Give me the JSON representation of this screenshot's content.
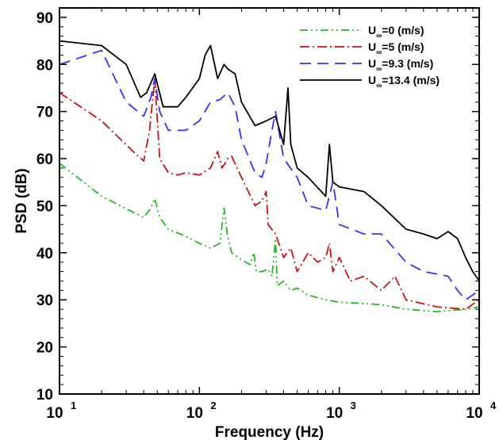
{
  "chart_data": {
    "type": "line",
    "xlabel": "Frequency (Hz)",
    "ylabel": "PSD (dB)",
    "xscale": "log",
    "xlim": [
      10,
      10000
    ],
    "ylim": [
      10,
      92
    ],
    "x_ticks": [
      {
        "base": "10",
        "exp": "1"
      },
      {
        "base": "10",
        "exp": "2"
      },
      {
        "base": "10",
        "exp": "3"
      },
      {
        "base": "10",
        "exp": "4"
      }
    ],
    "y_ticks": [
      "10",
      "20",
      "30",
      "40",
      "50",
      "60",
      "70",
      "80",
      "90"
    ],
    "grid": false,
    "legend_position": "top-right",
    "series": [
      {
        "name": "U∞=0 (m/s)",
        "legend": {
          "main": "U",
          "sub": "∞",
          "rest": "=0 (m/s)"
        },
        "color": "#22bb22",
        "dash": "10,4,2,4,2,4",
        "points": [
          [
            10,
            59
          ],
          [
            20,
            52
          ],
          [
            40,
            47.5
          ],
          [
            45,
            49.5
          ],
          [
            48,
            51.5
          ],
          [
            52,
            47.5
          ],
          [
            60,
            45
          ],
          [
            80,
            43.5
          ],
          [
            100,
            42
          ],
          [
            120,
            41
          ],
          [
            130,
            41.5
          ],
          [
            140,
            42
          ],
          [
            150,
            49.5
          ],
          [
            158,
            44
          ],
          [
            170,
            40
          ],
          [
            200,
            38.5
          ],
          [
            230,
            37.5
          ],
          [
            245,
            40
          ],
          [
            255,
            36
          ],
          [
            280,
            36
          ],
          [
            310,
            36.5
          ],
          [
            330,
            35
          ],
          [
            350,
            43
          ],
          [
            360,
            33
          ],
          [
            400,
            34
          ],
          [
            450,
            32
          ],
          [
            500,
            32.5
          ],
          [
            600,
            31
          ],
          [
            800,
            30
          ],
          [
            1000,
            29.5
          ],
          [
            2000,
            29
          ],
          [
            3000,
            28
          ],
          [
            5000,
            27.5
          ],
          [
            8000,
            28
          ],
          [
            10000,
            28.5
          ]
        ]
      },
      {
        "name": "U∞=5 (m/s)",
        "legend": {
          "main": "U",
          "sub": "∞",
          "rest": "=5 (m/s)"
        },
        "color": "#cc1111",
        "dash": "12,4,2,4",
        "points": [
          [
            10,
            74
          ],
          [
            20,
            68
          ],
          [
            35,
            61
          ],
          [
            40,
            59.5
          ],
          [
            44,
            66
          ],
          [
            48,
            77
          ],
          [
            52,
            60
          ],
          [
            60,
            57
          ],
          [
            70,
            56.5
          ],
          [
            80,
            57
          ],
          [
            100,
            56.5
          ],
          [
            120,
            58
          ],
          [
            135,
            61.5
          ],
          [
            145,
            58
          ],
          [
            160,
            60
          ],
          [
            170,
            60.5
          ],
          [
            200,
            56
          ],
          [
            250,
            50
          ],
          [
            280,
            51
          ],
          [
            300,
            53
          ],
          [
            310,
            46
          ],
          [
            350,
            44
          ],
          [
            400,
            39
          ],
          [
            450,
            41
          ],
          [
            500,
            36
          ],
          [
            600,
            40
          ],
          [
            700,
            38
          ],
          [
            800,
            39
          ],
          [
            850,
            42
          ],
          [
            900,
            36
          ],
          [
            1000,
            39
          ],
          [
            1200,
            34
          ],
          [
            1500,
            35
          ],
          [
            2000,
            32
          ],
          [
            2500,
            35
          ],
          [
            3000,
            30
          ],
          [
            5000,
            28.5
          ],
          [
            8000,
            28
          ],
          [
            10000,
            30
          ]
        ]
      },
      {
        "name": "U∞=9.3 (m/s)",
        "legend": {
          "main": "U",
          "sub": "∞",
          "rest": "=9.3 (m/s)"
        },
        "color": "#3333ff",
        "dash": "14,8",
        "points": [
          [
            10,
            80
          ],
          [
            20,
            83
          ],
          [
            30,
            72
          ],
          [
            40,
            69
          ],
          [
            45,
            73
          ],
          [
            48,
            77
          ],
          [
            52,
            70
          ],
          [
            60,
            66
          ],
          [
            80,
            66
          ],
          [
            100,
            68
          ],
          [
            120,
            72
          ],
          [
            140,
            72.5
          ],
          [
            160,
            74
          ],
          [
            180,
            71
          ],
          [
            200,
            64
          ],
          [
            250,
            57
          ],
          [
            280,
            56
          ],
          [
            300,
            59
          ],
          [
            330,
            66
          ],
          [
            350,
            70
          ],
          [
            400,
            60
          ],
          [
            500,
            56
          ],
          [
            600,
            50
          ],
          [
            800,
            49
          ],
          [
            900,
            55
          ],
          [
            1000,
            46
          ],
          [
            1500,
            44
          ],
          [
            2000,
            44
          ],
          [
            3000,
            38
          ],
          [
            4000,
            36
          ],
          [
            5000,
            35.5
          ],
          [
            6000,
            35
          ],
          [
            7000,
            32
          ],
          [
            8000,
            30
          ],
          [
            10000,
            32
          ]
        ]
      },
      {
        "name": "U∞=13.4 (m/s)",
        "legend": {
          "main": "U",
          "sub": "∞",
          "rest": "=13.4 (m/s)"
        },
        "color": "#000000",
        "dash": "",
        "points": [
          [
            10,
            85
          ],
          [
            20,
            84
          ],
          [
            30,
            80
          ],
          [
            38,
            73
          ],
          [
            42,
            74
          ],
          [
            48,
            78
          ],
          [
            55,
            71
          ],
          [
            70,
            71
          ],
          [
            80,
            73
          ],
          [
            100,
            77
          ],
          [
            110,
            82
          ],
          [
            120,
            84
          ],
          [
            135,
            77
          ],
          [
            150,
            80
          ],
          [
            160,
            79
          ],
          [
            180,
            78
          ],
          [
            200,
            72
          ],
          [
            250,
            67
          ],
          [
            300,
            68
          ],
          [
            350,
            69
          ],
          [
            400,
            63
          ],
          [
            430,
            75
          ],
          [
            450,
            63
          ],
          [
            500,
            58
          ],
          [
            600,
            56
          ],
          [
            800,
            52
          ],
          [
            850,
            63
          ],
          [
            900,
            55
          ],
          [
            1000,
            54
          ],
          [
            1500,
            53
          ],
          [
            2000,
            50
          ],
          [
            3000,
            45
          ],
          [
            4000,
            44
          ],
          [
            5000,
            43
          ],
          [
            6000,
            44.5
          ],
          [
            7000,
            43
          ],
          [
            8000,
            39
          ],
          [
            9000,
            36
          ],
          [
            10000,
            34
          ]
        ]
      }
    ]
  }
}
